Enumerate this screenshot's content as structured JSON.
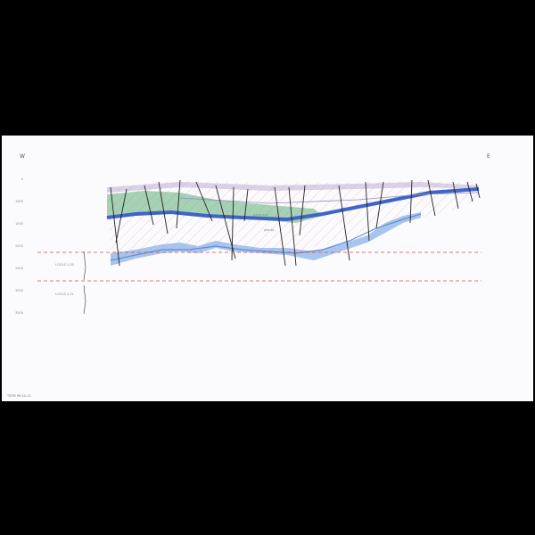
{
  "section": {
    "west_label": "W",
    "east_label": "E",
    "depth_ticks": [
      "0",
      "1000",
      "1500",
      "2000",
      "2500",
      "3000",
      "3500",
      "4000"
    ],
    "well_labels": [
      "LOCUS 1-30",
      "LOCUS 2-31"
    ],
    "stamp": "TSEM 98-5A-12",
    "notes": [
      "Q3-Mo-b18",
      "J25C-K1"
    ]
  },
  "colors": {
    "paper": "#fbfbfd",
    "deep_blue": "#3f63c8",
    "light_blue": "#86aee6",
    "green": "#5fae78",
    "hatch_red": "#e58a8a",
    "fault": "#222222",
    "dash_red": "#d05050"
  }
}
